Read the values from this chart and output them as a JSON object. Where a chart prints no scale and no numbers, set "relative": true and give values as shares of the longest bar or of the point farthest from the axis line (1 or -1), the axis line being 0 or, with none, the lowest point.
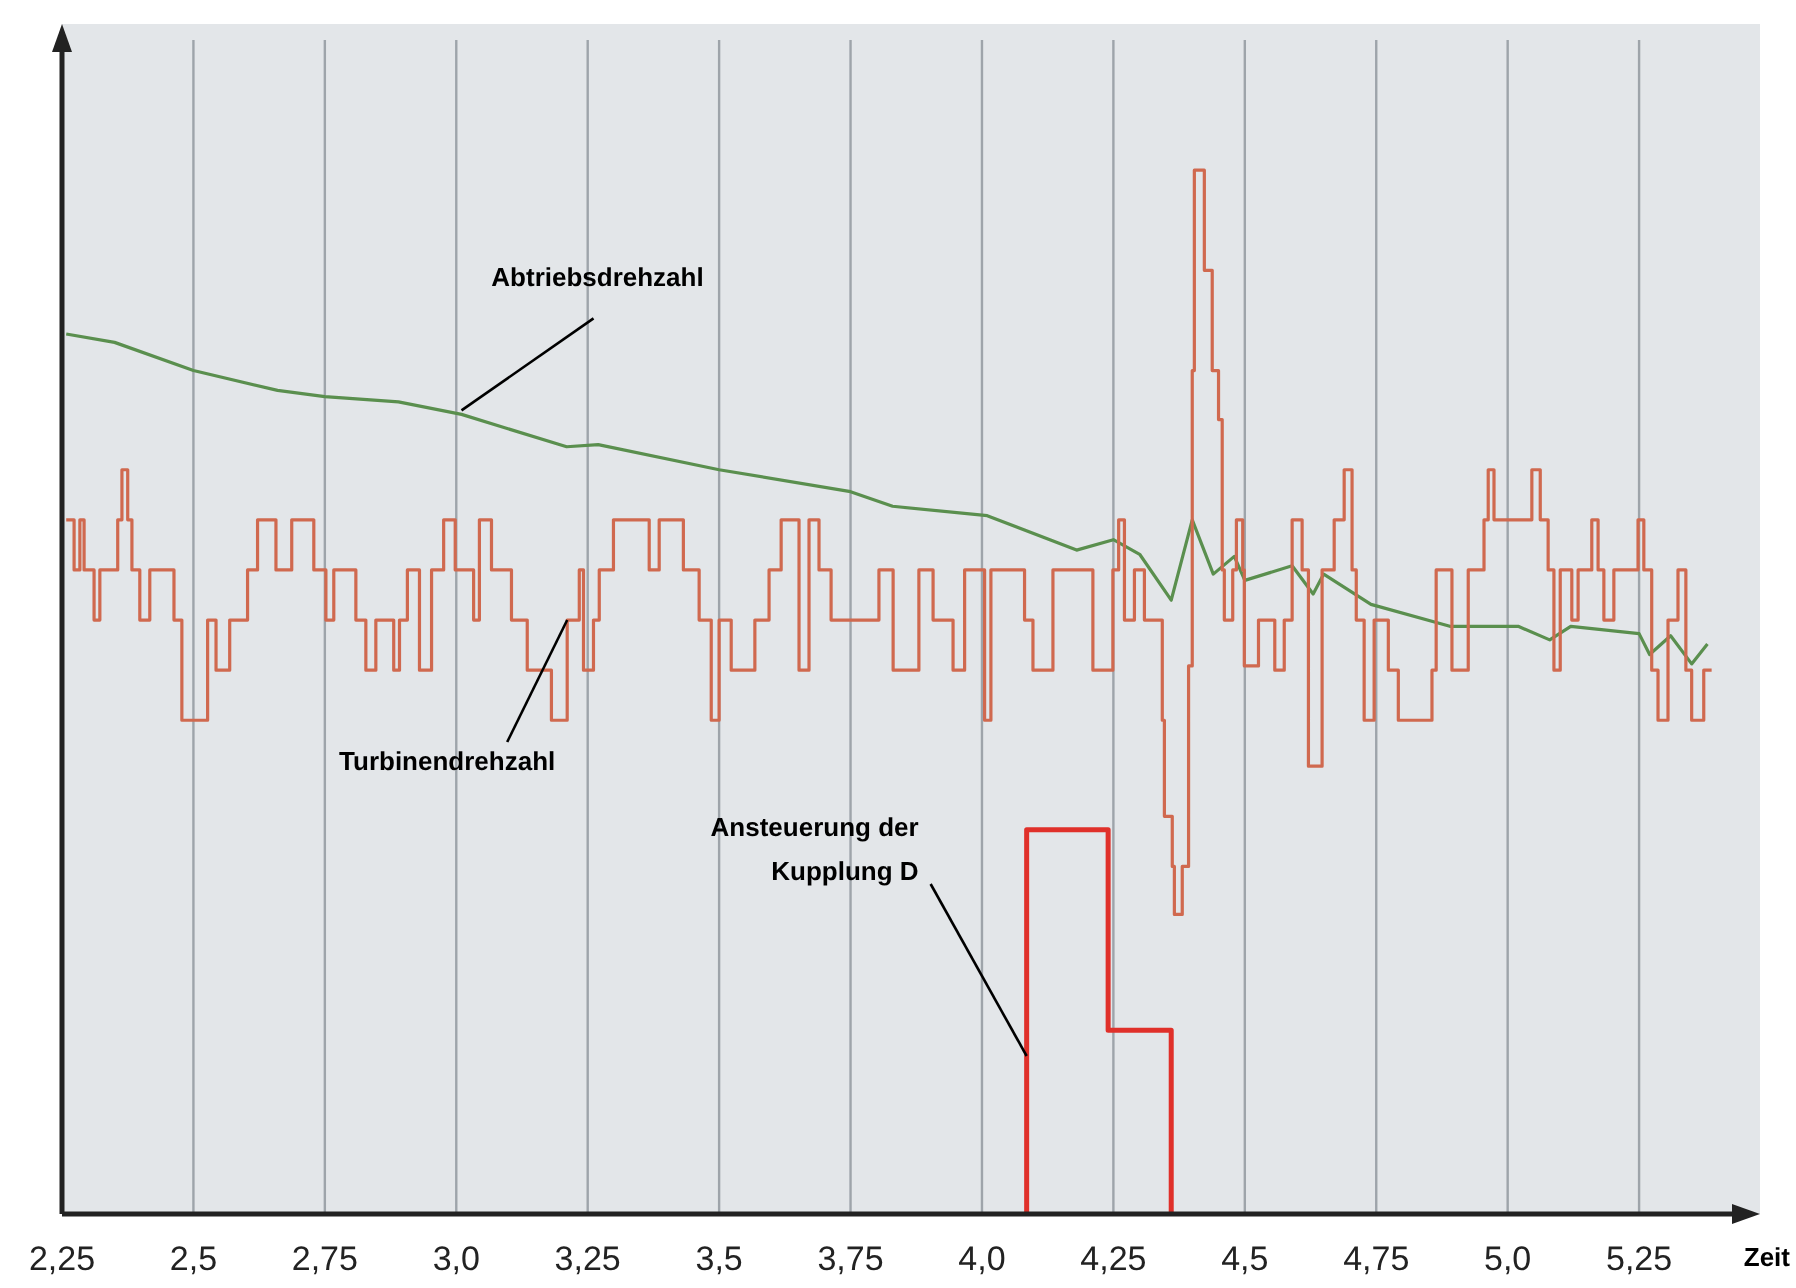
{
  "chart_data": {
    "type": "step",
    "relative": true,
    "xlabel": "Zeit",
    "xlim": [
      2.25,
      5.48
    ],
    "xticks": [
      {
        "value": 2.25,
        "label": "2,25"
      },
      {
        "value": 2.5,
        "label": "2,5"
      },
      {
        "value": 2.75,
        "label": "2,75"
      },
      {
        "value": 3.0,
        "label": "3,0"
      },
      {
        "value": 3.25,
        "label": "3,25"
      },
      {
        "value": 3.5,
        "label": "3,5"
      },
      {
        "value": 3.75,
        "label": "3,75"
      },
      {
        "value": 4.0,
        "label": "4,0"
      },
      {
        "value": 4.25,
        "label": "4,25"
      },
      {
        "value": 4.5,
        "label": "4,5"
      },
      {
        "value": 4.75,
        "label": "4,75"
      },
      {
        "value": 5.0,
        "label": "5,0"
      },
      {
        "value": 5.25,
        "label": "5,25"
      }
    ],
    "grid": "x",
    "tick_labels": "x",
    "series": [
      {
        "name": "Abtriebsdrehzahl",
        "type": "line",
        "color": "#5a8f4e",
        "x": [
          2.258,
          2.35,
          2.5,
          2.66,
          2.75,
          2.89,
          3.01,
          3.21,
          3.27,
          3.5,
          3.75,
          3.83,
          4.01,
          4.18,
          4.25,
          4.3,
          4.36,
          4.4,
          4.44,
          4.48,
          4.5,
          4.59,
          4.63,
          4.65,
          4.74,
          4.89,
          5.02,
          5.08,
          5.12,
          5.25,
          5.27,
          5.31,
          5.35,
          5.38
        ],
        "values": [
          0.843,
          0.835,
          0.808,
          0.789,
          0.783,
          0.778,
          0.766,
          0.735,
          0.737,
          0.713,
          0.692,
          0.678,
          0.669,
          0.636,
          0.646,
          0.632,
          0.588,
          0.665,
          0.613,
          0.63,
          0.607,
          0.621,
          0.594,
          0.613,
          0.584,
          0.563,
          0.563,
          0.55,
          0.563,
          0.556,
          0.536,
          0.554,
          0.527,
          0.546
        ]
      },
      {
        "name": "Turbinendrehzahl",
        "color": "#d0694f",
        "x": [
          2.258,
          2.273,
          2.284,
          2.292,
          2.311,
          2.322,
          2.356,
          2.364,
          2.375,
          2.383,
          2.398,
          2.417,
          2.463,
          2.478,
          2.527,
          2.543,
          2.569,
          2.603,
          2.622,
          2.657,
          2.687,
          2.695,
          2.729,
          2.752,
          2.767,
          2.809,
          2.828,
          2.847,
          2.881,
          2.892,
          2.907,
          2.93,
          2.953,
          2.976,
          2.998,
          3.033,
          3.044,
          3.067,
          3.105,
          3.135,
          3.181,
          3.211,
          3.234,
          3.242,
          3.261,
          3.272,
          3.299,
          3.367,
          3.386,
          3.432,
          3.462,
          3.485,
          3.5,
          3.523,
          3.568,
          3.595,
          3.618,
          3.652,
          3.671,
          3.69,
          3.713,
          3.804,
          3.831,
          3.88,
          3.907,
          3.945,
          3.967,
          4.005,
          4.017,
          4.032,
          4.081,
          4.097,
          4.135,
          4.211,
          4.249,
          4.26,
          4.271,
          4.29,
          4.309,
          4.343,
          4.347,
          4.362,
          4.366,
          4.381,
          4.393,
          4.4,
          4.404,
          4.423,
          4.438,
          4.45,
          4.457,
          4.461,
          4.477,
          4.484,
          4.496,
          4.499,
          4.526,
          4.557,
          4.575,
          4.59,
          4.609,
          4.621,
          4.647,
          4.67,
          4.689,
          4.704,
          4.712,
          4.727,
          4.746,
          4.773,
          4.792,
          4.856,
          4.864,
          4.894,
          4.925,
          4.955,
          4.963,
          4.974,
          5.046,
          5.062,
          5.077,
          5.088,
          5.1,
          5.122,
          5.134,
          5.16,
          5.172,
          5.183,
          5.202,
          5.248,
          5.259,
          5.274,
          5.286,
          5.305,
          5.324,
          5.339,
          5.35,
          5.373,
          5.388
        ],
        "values": [
          0.665,
          0.617,
          0.665,
          0.617,
          0.569,
          0.617,
          0.665,
          0.713,
          0.665,
          0.617,
          0.569,
          0.617,
          0.569,
          0.473,
          0.569,
          0.521,
          0.569,
          0.617,
          0.665,
          0.617,
          0.665,
          0.665,
          0.617,
          0.569,
          0.617,
          0.569,
          0.521,
          0.569,
          0.521,
          0.569,
          0.617,
          0.521,
          0.617,
          0.665,
          0.617,
          0.569,
          0.665,
          0.617,
          0.569,
          0.521,
          0.473,
          0.569,
          0.617,
          0.521,
          0.569,
          0.617,
          0.665,
          0.617,
          0.665,
          0.617,
          0.569,
          0.473,
          0.569,
          0.521,
          0.569,
          0.617,
          0.665,
          0.521,
          0.665,
          0.617,
          0.569,
          0.617,
          0.521,
          0.617,
          0.569,
          0.521,
          0.617,
          0.473,
          0.617,
          0.617,
          0.569,
          0.521,
          0.617,
          0.521,
          0.617,
          0.665,
          0.569,
          0.617,
          0.569,
          0.473,
          0.381,
          0.333,
          0.287,
          0.333,
          0.525,
          0.808,
          1.0,
          0.904,
          0.808,
          0.761,
          0.617,
          0.569,
          0.617,
          0.665,
          0.617,
          0.525,
          0.569,
          0.521,
          0.569,
          0.665,
          0.617,
          0.429,
          0.617,
          0.665,
          0.713,
          0.617,
          0.569,
          0.473,
          0.569,
          0.521,
          0.473,
          0.521,
          0.617,
          0.521,
          0.617,
          0.665,
          0.713,
          0.665,
          0.713,
          0.665,
          0.617,
          0.521,
          0.617,
          0.569,
          0.617,
          0.665,
          0.617,
          0.569,
          0.617,
          0.665,
          0.617,
          0.521,
          0.473,
          0.569,
          0.617,
          0.521,
          0.473,
          0.521,
          0.521
        ]
      },
      {
        "name": "Ansteuerung der Kupplung D",
        "color": "#e0302a",
        "x": [
          4.085,
          4.085,
          4.24,
          4.36
        ],
        "values": [
          0,
          0.368,
          0.176,
          0
        ]
      }
    ]
  }
}
